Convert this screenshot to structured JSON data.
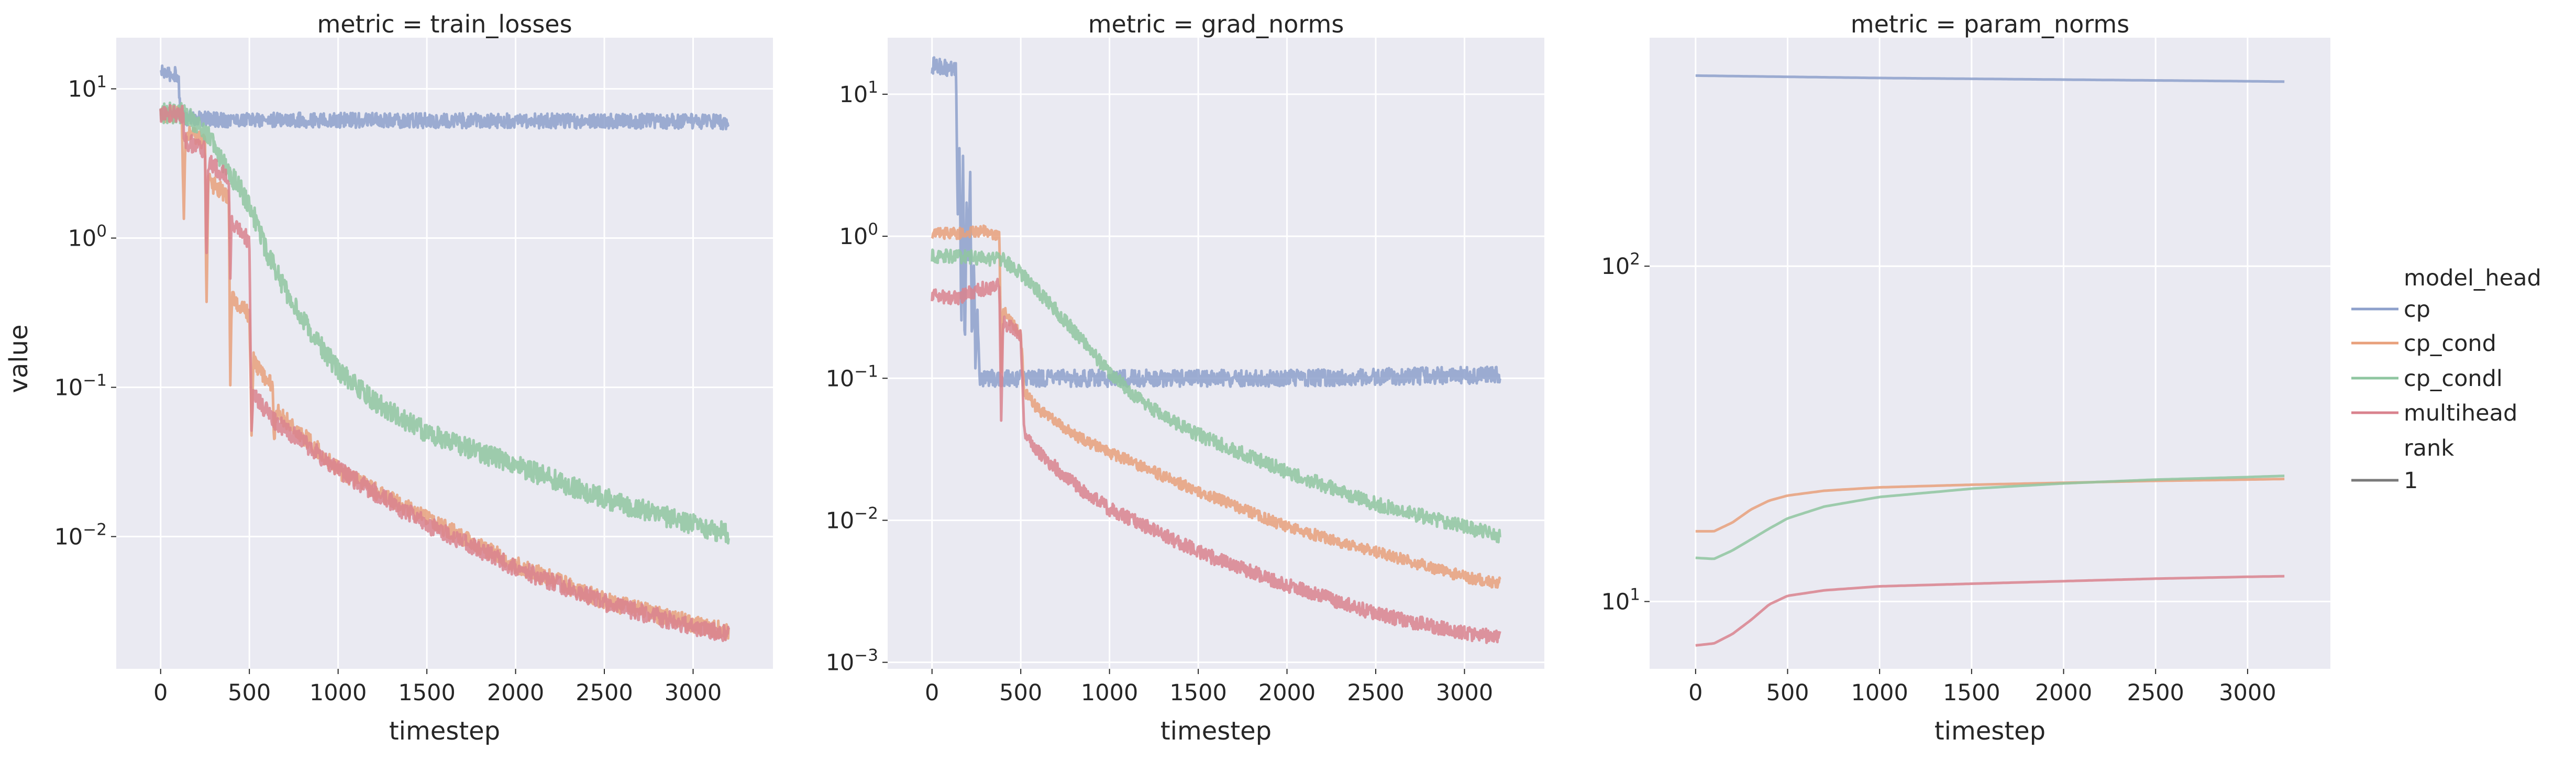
{
  "chart_data": [
    {
      "type": "line",
      "title": "metric = train_losses",
      "xlabel": "timestep",
      "ylabel": "value",
      "xlim": [
        -250,
        3450
      ],
      "yscale": "log",
      "ylim": [
        0.0013,
        22
      ],
      "x_ticks": [
        0,
        500,
        1000,
        1500,
        2000,
        2500,
        3000
      ],
      "y_ticks": [
        {
          "base": "10",
          "exp": "−2",
          "value": 0.01
        },
        {
          "base": "10",
          "exp": "−1",
          "value": 0.1
        },
        {
          "base": "10",
          "exp": "0",
          "value": 1
        },
        {
          "base": "10",
          "exp": "1",
          "value": 10
        }
      ],
      "grid": true,
      "series": [
        {
          "name": "cp",
          "color": "#8da0cb",
          "noise": 0.05,
          "points": [
            [
              0,
              13
            ],
            [
              40,
              12.5
            ],
            [
              100,
              12.5
            ],
            [
              110,
              6.8
            ],
            [
              140,
              6.4
            ],
            [
              300,
              6.2
            ],
            [
              1000,
              6.15
            ],
            [
              2000,
              6.1
            ],
            [
              3000,
              6.05
            ],
            [
              3200,
              6.0
            ]
          ]
        },
        {
          "name": "cp_cond",
          "color": "#e8a07b",
          "noise": 0.06,
          "points": [
            [
              0,
              6.9
            ],
            [
              120,
              6.8
            ],
            [
              130,
              1.3
            ],
            [
              140,
              5.0
            ],
            [
              250,
              4.5
            ],
            [
              258,
              0.28
            ],
            [
              268,
              2.4
            ],
            [
              385,
              1.9
            ],
            [
              392,
              0.08
            ],
            [
              400,
              0.4
            ],
            [
              500,
              0.3
            ],
            [
              512,
              0.05
            ],
            [
              522,
              0.15
            ],
            [
              630,
              0.1
            ],
            [
              640,
              0.04
            ],
            [
              650,
              0.07
            ],
            [
              1000,
              0.028
            ],
            [
              1500,
              0.013
            ],
            [
              2000,
              0.0065
            ],
            [
              2500,
              0.0037
            ],
            [
              3000,
              0.0026
            ],
            [
              3200,
              0.0023
            ]
          ]
        },
        {
          "name": "cp_condl",
          "color": "#8fc6a0",
          "noise": 0.07,
          "points": [
            [
              0,
              6.9
            ],
            [
              130,
              6.9
            ],
            [
              250,
              5.2
            ],
            [
              400,
              2.6
            ],
            [
              500,
              1.7
            ],
            [
              600,
              0.8
            ],
            [
              700,
              0.45
            ],
            [
              800,
              0.28
            ],
            [
              1000,
              0.13
            ],
            [
              1200,
              0.08
            ],
            [
              1500,
              0.05
            ],
            [
              2000,
              0.03
            ],
            [
              2500,
              0.018
            ],
            [
              3000,
              0.012
            ],
            [
              3200,
              0.0105
            ]
          ]
        },
        {
          "name": "multihead",
          "color": "#d9828e",
          "noise": 0.06,
          "points": [
            [
              0,
              6.9
            ],
            [
              125,
              6.8
            ],
            [
              135,
              4.5
            ],
            [
              250,
              3.9
            ],
            [
              258,
              0.6
            ],
            [
              268,
              3.2
            ],
            [
              385,
              2.5
            ],
            [
              392,
              0.5
            ],
            [
              400,
              1.3
            ],
            [
              500,
              0.95
            ],
            [
              512,
              0.05
            ],
            [
              522,
              0.09
            ],
            [
              640,
              0.06
            ],
            [
              1000,
              0.028
            ],
            [
              1500,
              0.012
            ],
            [
              2000,
              0.0062
            ],
            [
              2500,
              0.0036
            ],
            [
              3000,
              0.0025
            ],
            [
              3200,
              0.0022
            ]
          ]
        }
      ]
    },
    {
      "type": "line",
      "title": "metric = grad_norms",
      "xlabel": "timestep",
      "ylabel": "",
      "xlim": [
        -250,
        3450
      ],
      "yscale": "log",
      "ylim": [
        0.0009,
        25
      ],
      "x_ticks": [
        0,
        500,
        1000,
        1500,
        2000,
        2500,
        3000
      ],
      "y_ticks": [
        {
          "base": "10",
          "exp": "−3",
          "value": 0.001
        },
        {
          "base": "10",
          "exp": "−2",
          "value": 0.01
        },
        {
          "base": "10",
          "exp": "−1",
          "value": 0.1
        },
        {
          "base": "10",
          "exp": "0",
          "value": 1
        },
        {
          "base": "10",
          "exp": "1",
          "value": 10
        }
      ],
      "grid": true,
      "series": [
        {
          "name": "cp",
          "color": "#8da0cb",
          "noise": 0.06,
          "points": [
            [
              0,
              16
            ],
            [
              100,
              15
            ],
            [
              135,
              15
            ],
            [
              145,
              1.5
            ],
            [
              155,
              5
            ],
            [
              165,
              0.2
            ],
            [
              175,
              4
            ],
            [
              185,
              0.13
            ],
            [
              195,
              2
            ],
            [
              205,
              0.5
            ],
            [
              215,
              3
            ],
            [
              225,
              0.15
            ],
            [
              235,
              0.8
            ],
            [
              245,
              0.11
            ],
            [
              255,
              0.3
            ],
            [
              270,
              0.1
            ],
            [
              320,
              0.1
            ],
            [
              1000,
              0.1
            ],
            [
              2000,
              0.1
            ],
            [
              3000,
              0.105
            ],
            [
              3200,
              0.105
            ]
          ]
        },
        {
          "name": "cp_cond",
          "color": "#e8a07b",
          "noise": 0.04,
          "points": [
            [
              0,
              1.05
            ],
            [
              200,
              1.05
            ],
            [
              300,
              1.1
            ],
            [
              380,
              1.0
            ],
            [
              390,
              0.1
            ],
            [
              400,
              0.3
            ],
            [
              500,
              0.2
            ],
            [
              520,
              0.08
            ],
            [
              600,
              0.06
            ],
            [
              800,
              0.04
            ],
            [
              1000,
              0.03
            ],
            [
              1500,
              0.016
            ],
            [
              2000,
              0.009
            ],
            [
              2500,
              0.006
            ],
            [
              3000,
              0.004
            ],
            [
              3200,
              0.0036
            ]
          ]
        },
        {
          "name": "cp_condl",
          "color": "#8fc6a0",
          "noise": 0.05,
          "points": [
            [
              0,
              0.73
            ],
            [
              200,
              0.72
            ],
            [
              400,
              0.68
            ],
            [
              500,
              0.55
            ],
            [
              700,
              0.3
            ],
            [
              1000,
              0.11
            ],
            [
              1200,
              0.065
            ],
            [
              1500,
              0.04
            ],
            [
              2000,
              0.022
            ],
            [
              2500,
              0.013
            ],
            [
              3000,
              0.009
            ],
            [
              3200,
              0.0078
            ]
          ]
        },
        {
          "name": "multihead",
          "color": "#d9828e",
          "noise": 0.05,
          "points": [
            [
              0,
              0.38
            ],
            [
              150,
              0.37
            ],
            [
              260,
              0.42
            ],
            [
              380,
              0.45
            ],
            [
              390,
              0.05
            ],
            [
              400,
              0.25
            ],
            [
              500,
              0.2
            ],
            [
              520,
              0.04
            ],
            [
              600,
              0.03
            ],
            [
              800,
              0.018
            ],
            [
              1000,
              0.012
            ],
            [
              1500,
              0.006
            ],
            [
              2000,
              0.0035
            ],
            [
              2500,
              0.0022
            ],
            [
              3000,
              0.0016
            ],
            [
              3200,
              0.0015
            ]
          ]
        }
      ]
    },
    {
      "type": "line",
      "title": "metric = param_norms",
      "xlabel": "timestep",
      "ylabel": "",
      "xlim": [
        -250,
        3450
      ],
      "yscale": "log",
      "ylim": [
        6.3,
        480
      ],
      "x_ticks": [
        0,
        500,
        1000,
        1500,
        2000,
        2500,
        3000
      ],
      "y_ticks": [
        {
          "base": "10",
          "exp": "1",
          "value": 10
        },
        {
          "base": "10",
          "exp": "2",
          "value": 100
        }
      ],
      "grid": true,
      "series": [
        {
          "name": "cp",
          "color": "#8da0cb",
          "noise": 0,
          "points": [
            [
              0,
              370
            ],
            [
              500,
              367
            ],
            [
              1000,
              364
            ],
            [
              2000,
              360
            ],
            [
              3000,
              356
            ],
            [
              3200,
              355
            ]
          ]
        },
        {
          "name": "cp_cond",
          "color": "#e8a07b",
          "noise": 0,
          "points": [
            [
              0,
              16.2
            ],
            [
              100,
              16.2
            ],
            [
              200,
              17.2
            ],
            [
              300,
              18.8
            ],
            [
              400,
              20.0
            ],
            [
              500,
              20.7
            ],
            [
              700,
              21.4
            ],
            [
              1000,
              21.9
            ],
            [
              1500,
              22.3
            ],
            [
              2000,
              22.6
            ],
            [
              2500,
              22.9
            ],
            [
              3000,
              23.1
            ],
            [
              3200,
              23.2
            ]
          ]
        },
        {
          "name": "cp_condl",
          "color": "#8fc6a0",
          "noise": 0,
          "points": [
            [
              0,
              13.5
            ],
            [
              100,
              13.4
            ],
            [
              200,
              14.2
            ],
            [
              300,
              15.3
            ],
            [
              400,
              16.5
            ],
            [
              500,
              17.7
            ],
            [
              700,
              19.2
            ],
            [
              1000,
              20.5
            ],
            [
              1500,
              21.7
            ],
            [
              2000,
              22.5
            ],
            [
              2500,
              23.1
            ],
            [
              3000,
              23.5
            ],
            [
              3200,
              23.7
            ]
          ]
        },
        {
          "name": "multihead",
          "color": "#d9828e",
          "noise": 0,
          "points": [
            [
              0,
              7.4
            ],
            [
              100,
              7.5
            ],
            [
              200,
              8.0
            ],
            [
              300,
              8.8
            ],
            [
              400,
              9.8
            ],
            [
              500,
              10.4
            ],
            [
              700,
              10.8
            ],
            [
              1000,
              11.1
            ],
            [
              1500,
              11.3
            ],
            [
              2000,
              11.5
            ],
            [
              2500,
              11.7
            ],
            [
              3000,
              11.85
            ],
            [
              3200,
              11.9
            ]
          ]
        }
      ]
    }
  ],
  "legend": {
    "position": "right",
    "hue_title": "model_head",
    "entries": [
      {
        "label": "cp",
        "color": "#8da0cb"
      },
      {
        "label": "cp_cond",
        "color": "#e8a07b"
      },
      {
        "label": "cp_condl",
        "color": "#8fc6a0"
      },
      {
        "label": "multihead",
        "color": "#d9828e"
      }
    ],
    "size_title": "rank",
    "size_entries": [
      {
        "label": "1",
        "color": "#7a7a7a"
      }
    ]
  },
  "colors": {
    "panel_bg": "#eaeaf2",
    "grid": "#ffffff",
    "text": "#262626"
  }
}
